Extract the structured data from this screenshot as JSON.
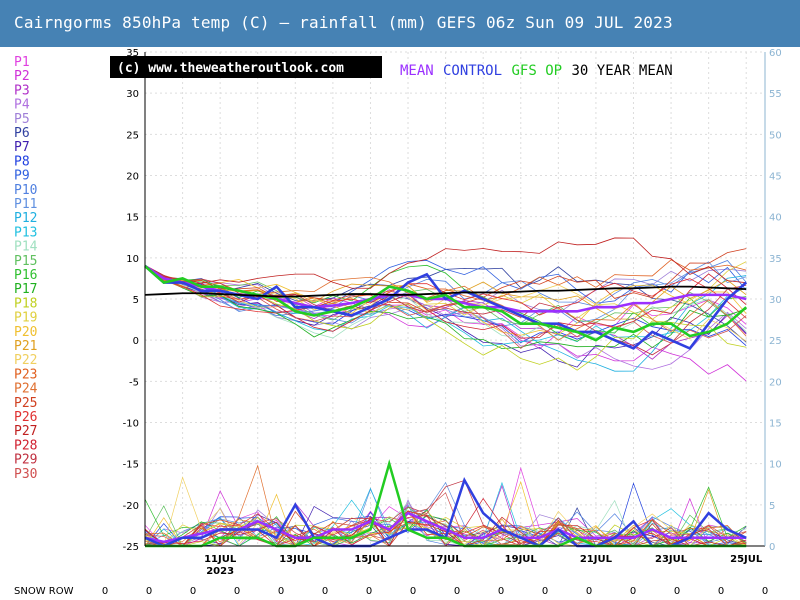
{
  "title": "Cairngorms 850hPa temp (C) – rainfall (mm)   GEFS 06z Sun 09 JUL 2023",
  "copyright": "(c) www.theweatheroutlook.com",
  "legend": [
    {
      "label": "MEAN",
      "color": "#9b30ff"
    },
    {
      "label": "CONTROL",
      "color": "#3040e0"
    },
    {
      "label": "GFS OP",
      "color": "#22cc22"
    },
    {
      "label": "30 YEAR MEAN",
      "color": "#000000"
    }
  ],
  "members": [
    {
      "label": "P1",
      "color": "#e040e0"
    },
    {
      "label": "P2",
      "color": "#d030d8"
    },
    {
      "label": "P3",
      "color": "#b030c8"
    },
    {
      "label": "P4",
      "color": "#b070e0"
    },
    {
      "label": "P5",
      "color": "#a080d8"
    },
    {
      "label": "P6",
      "color": "#3040a0"
    },
    {
      "label": "P7",
      "color": "#4020b0"
    },
    {
      "label": "P8",
      "color": "#2040e0"
    },
    {
      "label": "P9",
      "color": "#3060e0"
    },
    {
      "label": "P10",
      "color": "#5080e0"
    },
    {
      "label": "P11",
      "color": "#6090e0"
    },
    {
      "label": "P12",
      "color": "#20b0e0"
    },
    {
      "label": "P13",
      "color": "#20c0e0"
    },
    {
      "label": "P14",
      "color": "#a0e0c0"
    },
    {
      "label": "P15",
      "color": "#60c060"
    },
    {
      "label": "P16",
      "color": "#30c030"
    },
    {
      "label": "P17",
      "color": "#20b020"
    },
    {
      "label": "P18",
      "color": "#c0d020"
    },
    {
      "label": "P19",
      "color": "#e0d040"
    },
    {
      "label": "P20",
      "color": "#f0c030"
    },
    {
      "label": "P21",
      "color": "#e0a020"
    },
    {
      "label": "P22",
      "color": "#f0d060"
    },
    {
      "label": "P23",
      "color": "#e06020"
    },
    {
      "label": "P24",
      "color": "#e07030"
    },
    {
      "label": "P25",
      "color": "#d04020"
    },
    {
      "label": "P26",
      "color": "#e03030"
    },
    {
      "label": "P27",
      "color": "#c02020"
    },
    {
      "label": "P28",
      "color": "#d02030"
    },
    {
      "label": "P29",
      "color": "#c03040"
    },
    {
      "label": "P30",
      "color": "#d05050"
    }
  ],
  "chart_data": {
    "type": "line",
    "title": "Cairngorms 850hPa temp (C) – rainfall (mm)",
    "y_left_ticks": [
      35,
      30,
      25,
      20,
      15,
      10,
      5,
      0,
      -5,
      -10,
      -15,
      -20,
      -25
    ],
    "y_left_lim": [
      -25,
      35
    ],
    "y_right_ticks": [
      60,
      55,
      50,
      45,
      40,
      35,
      30,
      25,
      20,
      15,
      10,
      5,
      0
    ],
    "y_right_lim": [
      0,
      60
    ],
    "x_tick_labels": [
      "11JUL",
      "13JUL",
      "15JUL",
      "17JUL",
      "19JUL",
      "21JUL",
      "23JUL",
      "25JUL"
    ],
    "x_year_label": "2023",
    "x_days": [
      9,
      9.5,
      10,
      10.5,
      11,
      11.5,
      12,
      12.5,
      13,
      13.5,
      14,
      14.5,
      15,
      15.5,
      16,
      16.5,
      17,
      17.5,
      18,
      18.5,
      19,
      19.5,
      20,
      20.5,
      21,
      21.5,
      22,
      22.5,
      23,
      23.5,
      24,
      24.5,
      25
    ],
    "series": [
      {
        "name": "MEAN",
        "color": "#9b30ff",
        "values": [
          9,
          7.5,
          7,
          6.5,
          6,
          5.5,
          5.5,
          5,
          4.5,
          4,
          4.2,
          4.5,
          5,
          5.5,
          5.5,
          5,
          5,
          4.5,
          4,
          4,
          3.5,
          3.5,
          3.5,
          3.5,
          4,
          4,
          4.5,
          4.5,
          5,
          5.5,
          5.5,
          5.5,
          5
        ]
      },
      {
        "name": "CONTROL",
        "color": "#3040e0",
        "values": [
          9,
          7,
          7,
          6,
          6,
          5.5,
          5,
          6.5,
          4,
          4,
          3.5,
          3,
          4,
          5,
          7,
          8,
          5,
          6,
          5,
          4,
          3,
          2,
          2,
          1,
          1,
          0,
          -1,
          1,
          0,
          -1,
          2,
          5,
          7
        ]
      },
      {
        "name": "GFS OP",
        "color": "#22cc22",
        "values": [
          9,
          7,
          7.5,
          6.5,
          6.5,
          6,
          5.5,
          5,
          3.5,
          3,
          3.5,
          4,
          5,
          6.5,
          6,
          5,
          5.5,
          4,
          4,
          3.5,
          2,
          2,
          1.5,
          1,
          0,
          1.5,
          1,
          2,
          2,
          0.5,
          1,
          2,
          4
        ]
      },
      {
        "name": "30 YEAR MEAN",
        "color": "#000000",
        "values": [
          5.5,
          5.6,
          5.7,
          5.7,
          5.6,
          5.5,
          5.4,
          5.3,
          5.3,
          5.4,
          5.5,
          5.6,
          5.6,
          5.5,
          5.5,
          5.6,
          5.7,
          5.8,
          5.8,
          5.8,
          5.9,
          6.0,
          6.0,
          6.1,
          6.2,
          6.3,
          6.3,
          6.4,
          6.5,
          6.5,
          6.4,
          6.3,
          6.2
        ]
      }
    ],
    "rain_series": [
      {
        "name": "MEAN",
        "color": "#9b30ff",
        "values": [
          1,
          0.5,
          1,
          1.5,
          2,
          2,
          3,
          2,
          1,
          1,
          2,
          2,
          3,
          2,
          4,
          3,
          2,
          1,
          1,
          2,
          1,
          1,
          2,
          1,
          1,
          1,
          1,
          2,
          1,
          1,
          1,
          1,
          1
        ]
      },
      {
        "name": "CONTROL",
        "color": "#3040e0",
        "values": [
          1,
          0,
          1,
          1,
          2,
          2,
          2,
          1,
          5,
          1,
          0,
          0,
          0,
          1,
          2,
          2,
          1,
          8,
          4,
          2,
          1,
          0,
          2,
          0,
          0,
          1,
          3,
          0,
          0,
          1,
          4,
          2,
          1
        ]
      },
      {
        "name": "GFS OP",
        "color": "#22cc22",
        "values": [
          0,
          0,
          0,
          0,
          1,
          1,
          1,
          0,
          0,
          1,
          1,
          1,
          2,
          10,
          2,
          1,
          1,
          0,
          0,
          0,
          0,
          0,
          0,
          1,
          0,
          0,
          0,
          0,
          0,
          0,
          0,
          0,
          0
        ]
      }
    ]
  },
  "snow_row": {
    "label": "SNOW ROW",
    "values": [
      "0",
      "0",
      "0",
      "0",
      "0",
      "0",
      "0",
      "0",
      "0",
      "0",
      "0",
      "0",
      "0",
      "0",
      "0",
      "0"
    ]
  }
}
